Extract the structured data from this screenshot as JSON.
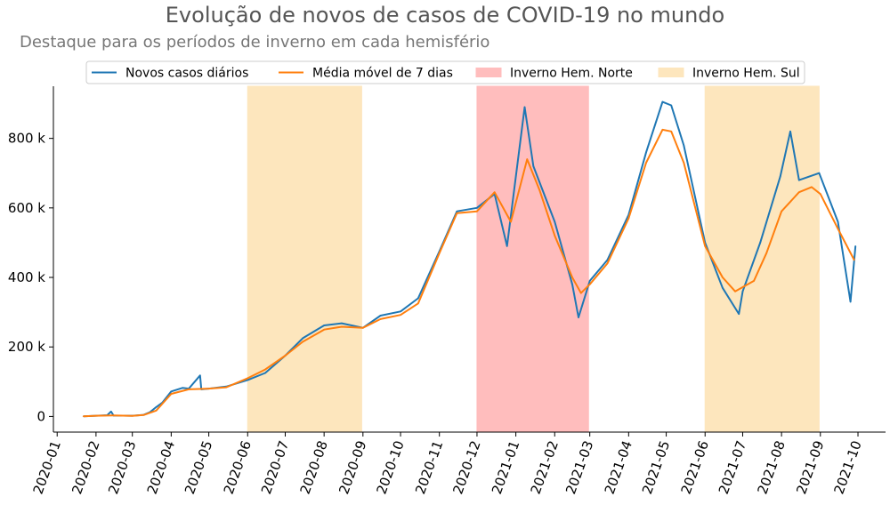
{
  "chart_data": {
    "type": "line",
    "title": "Evolução de novos de casos de COVID-19 no mundo",
    "subtitle": "Destaque para os períodos de inverno em cada hemisfério",
    "x_ticks": [
      "2020-01",
      "2020-02",
      "2020-03",
      "2020-04",
      "2020-05",
      "2020-06",
      "2020-07",
      "2020-08",
      "2020-09",
      "2020-10",
      "2020-11",
      "2020-12",
      "2021-01",
      "2021-02",
      "2021-03",
      "2021-04",
      "2021-05",
      "2021-06",
      "2021-07",
      "2021-08",
      "2021-09",
      "2021-10"
    ],
    "y_ticks": [
      0,
      200000,
      400000,
      600000,
      800000
    ],
    "y_tick_labels": [
      "0",
      "200 k",
      "400 k",
      "600 k",
      "800 k"
    ],
    "ylim": [
      -45000,
      950000
    ],
    "xlim": [
      "2019-12-29",
      "2021-10-23"
    ],
    "grid": false,
    "legend_position": "top-center",
    "series": [
      {
        "name": "Novos casos diários",
        "color": "#1f77b4",
        "points": [
          [
            "2020-01-22",
            600
          ],
          [
            "2020-02-01",
            2000
          ],
          [
            "2020-02-10",
            3500
          ],
          [
            "2020-02-13",
            14000
          ],
          [
            "2020-02-15",
            2500
          ],
          [
            "2020-03-01",
            2000
          ],
          [
            "2020-03-10",
            4500
          ],
          [
            "2020-03-15",
            12000
          ],
          [
            "2020-03-20",
            27000
          ],
          [
            "2020-03-25",
            40000
          ],
          [
            "2020-04-01",
            72000
          ],
          [
            "2020-04-10",
            82000
          ],
          [
            "2020-04-15",
            80000
          ],
          [
            "2020-04-24",
            118000
          ],
          [
            "2020-04-25",
            78000
          ],
          [
            "2020-05-01",
            80000
          ],
          [
            "2020-05-15",
            86000
          ],
          [
            "2020-06-01",
            105000
          ],
          [
            "2020-06-15",
            125000
          ],
          [
            "2020-07-01",
            175000
          ],
          [
            "2020-07-15",
            225000
          ],
          [
            "2020-08-01",
            262000
          ],
          [
            "2020-08-15",
            268000
          ],
          [
            "2020-09-01",
            255000
          ],
          [
            "2020-09-15",
            290000
          ],
          [
            "2020-10-01",
            302000
          ],
          [
            "2020-10-15",
            340000
          ],
          [
            "2020-11-01",
            475000
          ],
          [
            "2020-11-15",
            590000
          ],
          [
            "2020-12-01",
            600000
          ],
          [
            "2020-12-15",
            640000
          ],
          [
            "2020-12-25",
            490000
          ],
          [
            "2021-01-08",
            890000
          ],
          [
            "2021-01-15",
            720000
          ],
          [
            "2021-02-01",
            560000
          ],
          [
            "2021-02-15",
            380000
          ],
          [
            "2021-02-20",
            285000
          ],
          [
            "2021-03-01",
            390000
          ],
          [
            "2021-03-15",
            450000
          ],
          [
            "2021-04-01",
            580000
          ],
          [
            "2021-04-15",
            760000
          ],
          [
            "2021-04-28",
            905000
          ],
          [
            "2021-05-05",
            895000
          ],
          [
            "2021-05-15",
            780000
          ],
          [
            "2021-06-01",
            500000
          ],
          [
            "2021-06-15",
            370000
          ],
          [
            "2021-06-28",
            295000
          ],
          [
            "2021-07-01",
            360000
          ],
          [
            "2021-07-15",
            500000
          ],
          [
            "2021-07-31",
            690000
          ],
          [
            "2021-08-08",
            820000
          ],
          [
            "2021-08-15",
            680000
          ],
          [
            "2021-08-31",
            700000
          ],
          [
            "2021-09-15",
            560000
          ],
          [
            "2021-09-25",
            330000
          ],
          [
            "2021-09-29",
            490000
          ]
        ]
      },
      {
        "name": "Média móvel de 7 dias",
        "color": "#ff7f0e",
        "points": [
          [
            "2020-01-22",
            600
          ],
          [
            "2020-02-01",
            2000
          ],
          [
            "2020-02-15",
            3000
          ],
          [
            "2020-03-01",
            1800
          ],
          [
            "2020-03-10",
            4000
          ],
          [
            "2020-03-20",
            17000
          ],
          [
            "2020-04-01",
            65000
          ],
          [
            "2020-04-15",
            78000
          ],
          [
            "2020-05-01",
            80000
          ],
          [
            "2020-05-15",
            84000
          ],
          [
            "2020-06-01",
            110000
          ],
          [
            "2020-06-15",
            135000
          ],
          [
            "2020-07-01",
            175000
          ],
          [
            "2020-07-15",
            215000
          ],
          [
            "2020-08-01",
            250000
          ],
          [
            "2020-08-15",
            258000
          ],
          [
            "2020-09-01",
            255000
          ],
          [
            "2020-09-15",
            280000
          ],
          [
            "2020-10-01",
            292000
          ],
          [
            "2020-10-15",
            325000
          ],
          [
            "2020-11-01",
            470000
          ],
          [
            "2020-11-15",
            585000
          ],
          [
            "2020-12-01",
            590000
          ],
          [
            "2020-12-15",
            645000
          ],
          [
            "2020-12-28",
            560000
          ],
          [
            "2021-01-10",
            740000
          ],
          [
            "2021-01-20",
            650000
          ],
          [
            "2021-02-01",
            520000
          ],
          [
            "2021-02-15",
            400000
          ],
          [
            "2021-02-22",
            355000
          ],
          [
            "2021-03-01",
            380000
          ],
          [
            "2021-03-15",
            440000
          ],
          [
            "2021-04-01",
            570000
          ],
          [
            "2021-04-15",
            730000
          ],
          [
            "2021-04-28",
            825000
          ],
          [
            "2021-05-05",
            820000
          ],
          [
            "2021-05-15",
            730000
          ],
          [
            "2021-06-01",
            490000
          ],
          [
            "2021-06-15",
            400000
          ],
          [
            "2021-06-25",
            360000
          ],
          [
            "2021-07-10",
            390000
          ],
          [
            "2021-07-20",
            470000
          ],
          [
            "2021-08-01",
            590000
          ],
          [
            "2021-08-15",
            645000
          ],
          [
            "2021-08-25",
            660000
          ],
          [
            "2021-09-01",
            640000
          ],
          [
            "2021-09-15",
            540000
          ],
          [
            "2021-09-28",
            450000
          ]
        ]
      }
    ],
    "shaded_regions": [
      {
        "name": "Inverno Hem. Sul",
        "start": "2020-06-01",
        "end": "2020-08-31",
        "color": "#fde6bd"
      },
      {
        "name": "Inverno Hem. Norte",
        "start": "2020-12-01",
        "end": "2021-02-28",
        "color": "#ffbdbd"
      },
      {
        "name": "Inverno Hem. Sul",
        "start": "2021-06-01",
        "end": "2021-08-31",
        "color": "#fde6bd"
      }
    ],
    "legend": [
      "Novos casos diários",
      "Média móvel de 7 dias",
      "Inverno Hem. Norte",
      "Inverno Hem. Sul"
    ]
  }
}
